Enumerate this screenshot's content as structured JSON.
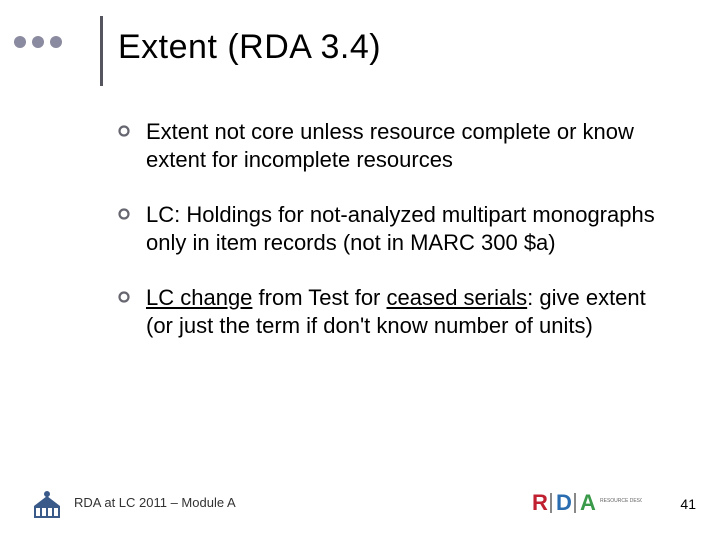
{
  "title": "Extent (RDA 3.4)",
  "bullets": [
    {
      "segments": [
        {
          "text": "Extent not core unless resource complete or know extent for incomplete resources",
          "underline": false
        }
      ]
    },
    {
      "segments": [
        {
          "text": "LC:  Holdings for not-analyzed multipart monographs only in item records (not in MARC 300 $a)",
          "underline": false
        }
      ]
    },
    {
      "segments": [
        {
          "text": "LC change",
          "underline": true
        },
        {
          "text": " from Test for ",
          "underline": false
        },
        {
          "text": "ceased serials",
          "underline": true
        },
        {
          "text": ": give extent (or just the term if don't know number of units)",
          "underline": false
        }
      ]
    }
  ],
  "footer": {
    "text": "RDA at LC 2011 – Module A",
    "page": "41",
    "rda_colors": {
      "r": "#c02030",
      "d": "#2a6db0",
      "a": "#3a9a4a"
    },
    "lc_color": "#3a5a8a"
  },
  "decor": {
    "dot_color": "#8a8aa0",
    "vline_color": "#555560",
    "bullet_ring_color": "#666670"
  }
}
